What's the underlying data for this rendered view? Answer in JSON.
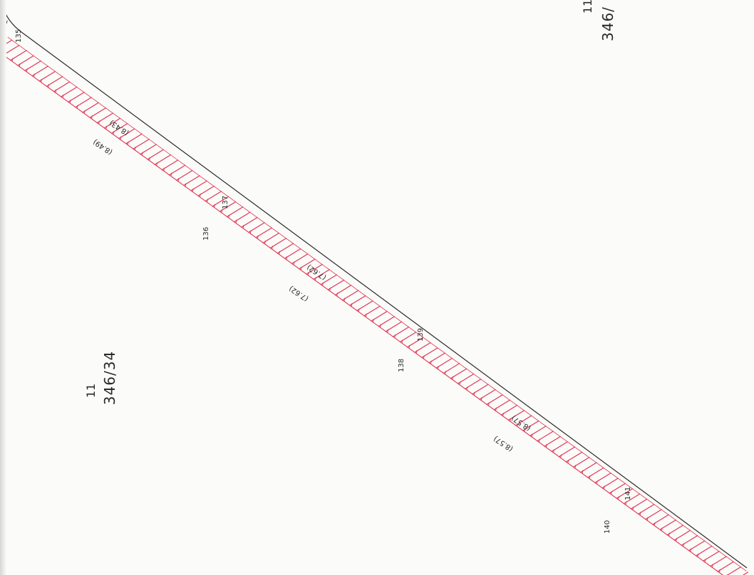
{
  "document": {
    "kind": "cadastral survey plan (scan)",
    "colors": {
      "paper": "#fbfbf9",
      "boundary_line": "#2a2a2a",
      "hatch_red": "#e0334f",
      "text": "#2a2a2a"
    }
  },
  "parcels": [
    {
      "id": "parcel-left",
      "label_top": "11",
      "label_bottom": "346/34"
    },
    {
      "id": "parcel-right",
      "label_top": "11",
      "label_bottom": "346/"
    }
  ],
  "survey_points": [
    {
      "label": "135"
    },
    {
      "label": "136"
    },
    {
      "label": "137"
    },
    {
      "label": "138"
    },
    {
      "label": "139"
    },
    {
      "label": "140"
    },
    {
      "label": "141"
    }
  ],
  "distances": [
    {
      "label": "(8.43)"
    },
    {
      "label": "(8.49)"
    },
    {
      "label": "(7.62)"
    },
    {
      "label": "(7.62)"
    },
    {
      "label": "(8.57)"
    },
    {
      "label": "(8.57)"
    }
  ],
  "edge_fragment": {
    "label": "("
  }
}
